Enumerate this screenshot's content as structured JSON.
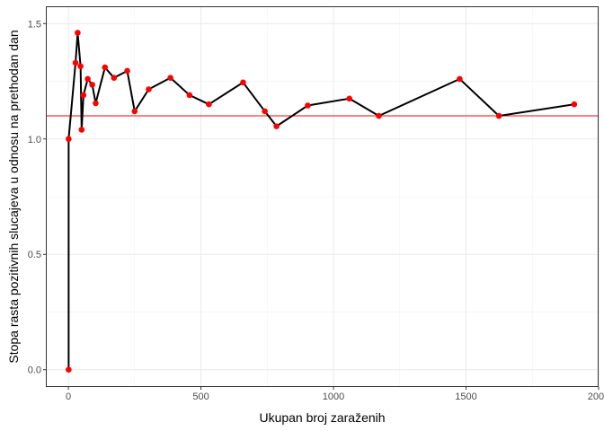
{
  "chart_data": {
    "type": "line",
    "title": "",
    "xlabel": "Ukupan broj zaraženih",
    "ylabel": "Stopa rasta pozitivnih slucajeva u odnosu na prethodan dan",
    "xlim": [
      -85,
      2000
    ],
    "ylim": [
      -0.075,
      1.575
    ],
    "x_ticks": [
      0,
      500,
      1000,
      1500,
      2000
    ],
    "x_tick_labels": [
      "0",
      "500",
      "1000",
      "1500",
      "2000"
    ],
    "y_ticks": [
      0.0,
      0.5,
      1.0,
      1.5
    ],
    "y_tick_labels": [
      "0.0",
      "0.5",
      "1.0",
      "1.5"
    ],
    "x_minor_ticks": [
      250,
      750,
      1250,
      1750
    ],
    "y_minor_ticks": [
      0.25,
      0.75,
      1.25
    ],
    "grid": true,
    "legend": "none",
    "series": [
      {
        "line_color": "#000000",
        "point_color": "#ff0000",
        "points": [
          {
            "x": 1,
            "y": 0.0
          },
          {
            "x": 1,
            "y": 1.0
          },
          {
            "x": 27,
            "y": 1.33
          },
          {
            "x": 35,
            "y": 1.46
          },
          {
            "x": 46,
            "y": 1.315
          },
          {
            "x": 50,
            "y": 1.04
          },
          {
            "x": 57,
            "y": 1.19
          },
          {
            "x": 73,
            "y": 1.26
          },
          {
            "x": 90,
            "y": 1.235
          },
          {
            "x": 103,
            "y": 1.155
          },
          {
            "x": 138,
            "y": 1.31
          },
          {
            "x": 172,
            "y": 1.265
          },
          {
            "x": 222,
            "y": 1.295
          },
          {
            "x": 250,
            "y": 1.12
          },
          {
            "x": 303,
            "y": 1.215
          },
          {
            "x": 385,
            "y": 1.265
          },
          {
            "x": 457,
            "y": 1.19
          },
          {
            "x": 530,
            "y": 1.15
          },
          {
            "x": 659,
            "y": 1.245
          },
          {
            "x": 741,
            "y": 1.12
          },
          {
            "x": 785,
            "y": 1.055
          },
          {
            "x": 903,
            "y": 1.145
          },
          {
            "x": 1060,
            "y": 1.175
          },
          {
            "x": 1171,
            "y": 1.1
          },
          {
            "x": 1476,
            "y": 1.26
          },
          {
            "x": 1624,
            "y": 1.1
          },
          {
            "x": 1908,
            "y": 1.15
          }
        ]
      }
    ],
    "reference_lines": [
      {
        "axis": "y",
        "value": 1.1,
        "color": "#ff0000"
      }
    ]
  }
}
